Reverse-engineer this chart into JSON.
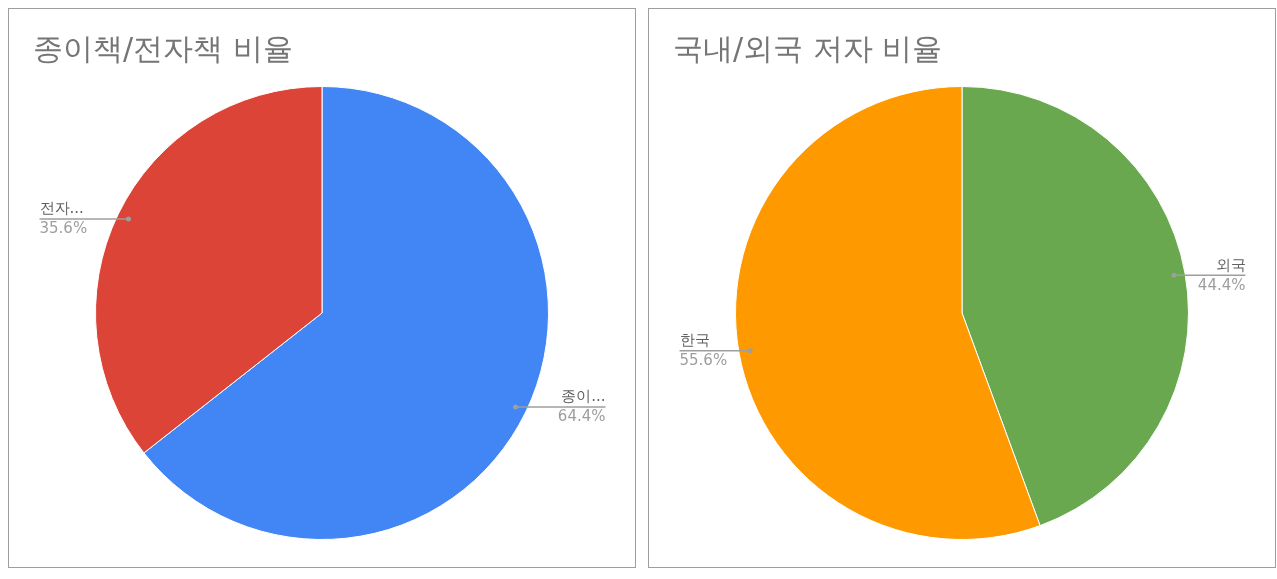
{
  "chart_data": [
    {
      "type": "pie",
      "title": "종이책/전자책 비율",
      "categories": [
        "종이...",
        "전자..."
      ],
      "values": [
        64.4,
        35.6
      ],
      "colors": [
        "#4285f4",
        "#db4437"
      ],
      "value_labels": [
        "64.4%",
        "35.6%"
      ],
      "legend": false
    },
    {
      "type": "pie",
      "title": "국내/외국 저자 비율",
      "categories": [
        "외국",
        "한국"
      ],
      "values": [
        44.4,
        55.6
      ],
      "colors": [
        "#6aa84f",
        "#ff9900"
      ],
      "value_labels": [
        "44.4%",
        "55.6%"
      ],
      "legend": false
    }
  ]
}
